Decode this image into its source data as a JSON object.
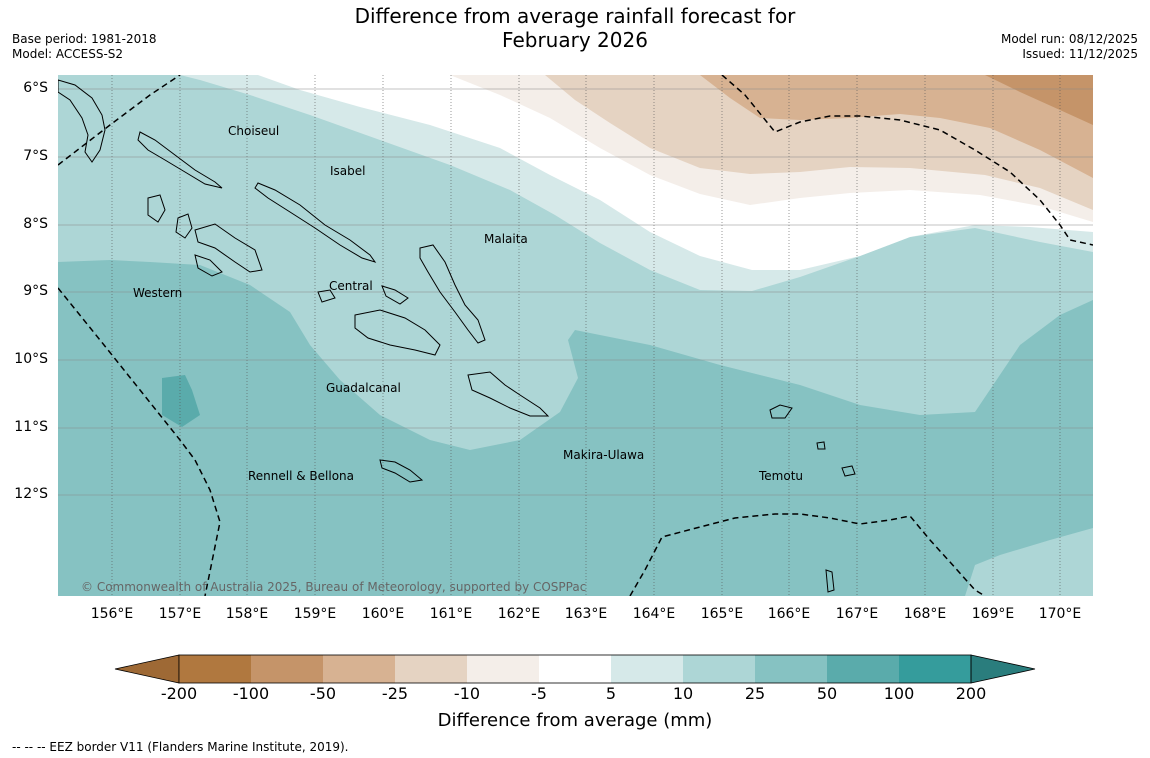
{
  "header": {
    "title_line1": "Difference from average rainfall forecast for",
    "title_line2": "February 2026",
    "base_period": "Base period: 1981-2018",
    "model": "Model: ACCESS-S2",
    "model_run": "Model run: 08/12/2025",
    "issued": "Issued: 11/12/2025"
  },
  "map": {
    "lon_labels": [
      "156°E",
      "157°E",
      "158°E",
      "159°E",
      "160°E",
      "161°E",
      "162°E",
      "163°E",
      "164°E",
      "165°E",
      "166°E",
      "167°E",
      "168°E",
      "169°E",
      "170°E"
    ],
    "lat_labels": [
      "6°S",
      "7°S",
      "8°S",
      "9°S",
      "10°S",
      "11°S",
      "12°S"
    ],
    "places": [
      {
        "name": "Choiseul"
      },
      {
        "name": "Isabel"
      },
      {
        "name": "Malaita"
      },
      {
        "name": "Western"
      },
      {
        "name": "Central"
      },
      {
        "name": "Guadalcanal"
      },
      {
        "name": "Makira-Ulawa"
      },
      {
        "name": "Rennell & Bellona"
      },
      {
        "name": "Temotu"
      }
    ],
    "copyright": "© Commonwealth of Australia 2025, Bureau of Meteorology, supported by COSPPac"
  },
  "colorbar": {
    "labels": [
      "-200",
      "-100",
      "-50",
      "-25",
      "-10",
      "-5",
      "5",
      "10",
      "25",
      "50",
      "100",
      "200"
    ],
    "colors": [
      "#9e6935",
      "#b0783f",
      "#c59469",
      "#d7b292",
      "#e5d3c2",
      "#f4eee9",
      "#ffffff",
      "#d6e9e9",
      "#add6d6",
      "#86c2c2",
      "#5aabab",
      "#359c9c",
      "#2a7d7d"
    ],
    "title": "Difference from average (mm)"
  },
  "footer": {
    "legend": "--  --  -- EEZ border V11 (Flanders Marine Institute, 2019)."
  }
}
